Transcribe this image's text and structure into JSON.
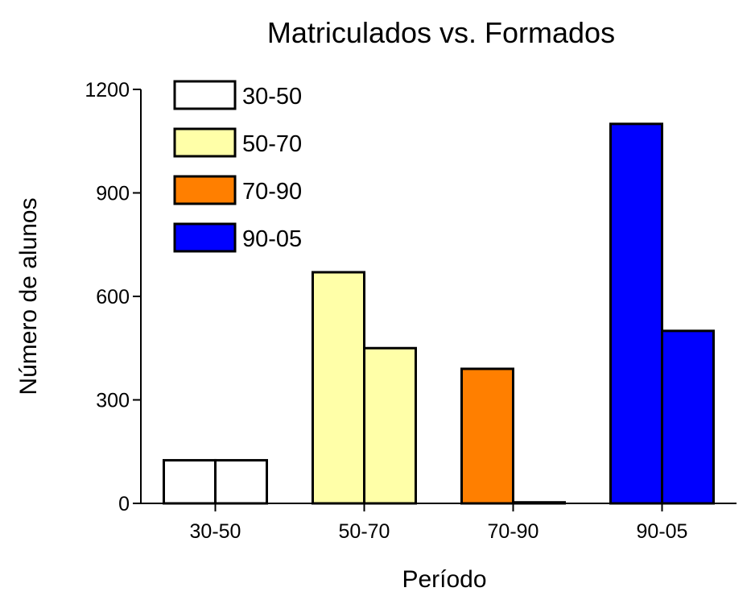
{
  "chart_data": {
    "type": "bar",
    "title": "Matriculados vs. Formados",
    "xlabel": "Período",
    "ylabel": "Número de alunos",
    "categories": [
      "30-50",
      "50-70",
      "70-90",
      "90-05"
    ],
    "ylim": [
      0,
      1200
    ],
    "yticks": [
      0,
      300,
      600,
      900,
      1200
    ],
    "grid": false,
    "legend_position": "top-left",
    "groups": [
      {
        "category": "30-50",
        "values": [
          125,
          125
        ],
        "color": "#ffffff"
      },
      {
        "category": "50-70",
        "values": [
          670,
          450
        ],
        "color": "#ffffa8"
      },
      {
        "category": "70-90",
        "values": [
          390,
          3
        ],
        "color": "#ff7f00"
      },
      {
        "category": "90-05",
        "values": [
          1100,
          500
        ],
        "color": "#0000ff"
      }
    ],
    "legend": [
      {
        "label": "30-50",
        "color": "#ffffff"
      },
      {
        "label": "50-70",
        "color": "#ffffa8"
      },
      {
        "label": "70-90",
        "color": "#ff7f00"
      },
      {
        "label": "90-05",
        "color": "#0000ff"
      }
    ]
  }
}
